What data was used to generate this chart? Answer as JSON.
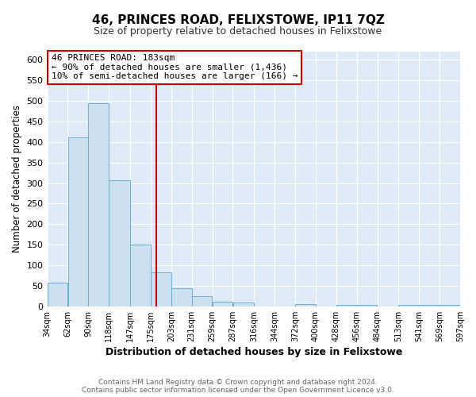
{
  "title": "46, PRINCES ROAD, FELIXSTOWE, IP11 7QZ",
  "subtitle": "Size of property relative to detached houses in Felixstowe",
  "xlabel": "Distribution of detached houses by size in Felixstowe",
  "ylabel": "Number of detached properties",
  "bar_left_edges": [
    34,
    62,
    90,
    118,
    147,
    175,
    203,
    231,
    259,
    287,
    316,
    344,
    372,
    400,
    428,
    456,
    484,
    513,
    541,
    569
  ],
  "bar_widths": [
    28,
    28,
    28,
    29,
    28,
    28,
    28,
    28,
    28,
    29,
    28,
    28,
    28,
    28,
    28,
    28,
    29,
    28,
    28,
    28
  ],
  "bar_heights": [
    57,
    412,
    494,
    307,
    150,
    83,
    45,
    25,
    12,
    10,
    0,
    0,
    5,
    0,
    3,
    3,
    0,
    3,
    3,
    3
  ],
  "bar_color": "#cde0f0",
  "bar_edge_color": "#6aaed6",
  "tick_labels": [
    "34sqm",
    "62sqm",
    "90sqm",
    "118sqm",
    "147sqm",
    "175sqm",
    "203sqm",
    "231sqm",
    "259sqm",
    "287sqm",
    "316sqm",
    "344sqm",
    "372sqm",
    "400sqm",
    "428sqm",
    "456sqm",
    "484sqm",
    "513sqm",
    "541sqm",
    "569sqm",
    "597sqm"
  ],
  "vline_x": 183,
  "vline_color": "#cc0000",
  "ylim": [
    0,
    620
  ],
  "yticks": [
    0,
    50,
    100,
    150,
    200,
    250,
    300,
    350,
    400,
    450,
    500,
    550,
    600
  ],
  "annotation_title": "46 PRINCES ROAD: 183sqm",
  "annotation_line1": "← 90% of detached houses are smaller (1,436)",
  "annotation_line2": "10% of semi-detached houses are larger (166) →",
  "footer_line1": "Contains HM Land Registry data © Crown copyright and database right 2024.",
  "footer_line2": "Contains public sector information licensed under the Open Government Licence v3.0.",
  "fig_bg_color": "#ffffff",
  "plot_bg_color": "#deeaf5",
  "grid_color": "#ffffff"
}
